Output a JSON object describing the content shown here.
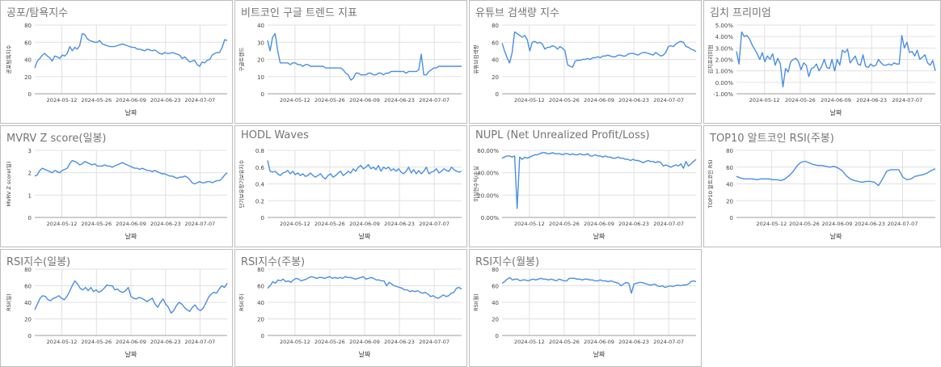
{
  "line_color": "#4a8fe2",
  "grid_color": "#e0e0e0",
  "chart_data": [
    {
      "type": "line",
      "title": "공포/탐욕지수",
      "xlabel": "날짜",
      "ylabel": "공포탐욕지수",
      "ylim": [
        0,
        80
      ],
      "yticks": [
        "0",
        "20",
        "40",
        "60",
        "80"
      ],
      "xticks": [
        "2024-05-12",
        "2024-05-26",
        "2024-06-09",
        "2024-06-23",
        "2024-07-07"
      ],
      "x_start": "2024-05-01",
      "x_end": "2024-07-18",
      "values": [
        30,
        38,
        41,
        45,
        47,
        44,
        42,
        38,
        44,
        43,
        41,
        45,
        44,
        47,
        55,
        50,
        54,
        52,
        56,
        70,
        69,
        64,
        62,
        61,
        60,
        60,
        62,
        58,
        57,
        56,
        55,
        55,
        55,
        56,
        57,
        58,
        57,
        56,
        55,
        54,
        54,
        52,
        52,
        51,
        50,
        52,
        51,
        50,
        51,
        49,
        47,
        46,
        48,
        47,
        47,
        48,
        47,
        46,
        45,
        41,
        43,
        40,
        37,
        38,
        39,
        34,
        32,
        37,
        36,
        39,
        40,
        45,
        47,
        48,
        48,
        54,
        63,
        62
      ]
    },
    {
      "type": "line",
      "title": "비트코인 구글 트렌드 지표",
      "xlabel": "",
      "ylabel": "구글트렌드",
      "ylim": [
        0,
        40
      ],
      "yticks": [
        "0",
        "10",
        "20",
        "30",
        "40"
      ],
      "xticks": [
        "2024-05-12",
        "2024-05-26",
        "2024-06-09",
        "2024-06-23",
        "2024-07-07"
      ],
      "x_start": "2024-05-01",
      "x_end": "2024-07-18",
      "values": [
        31,
        25,
        33,
        35,
        25,
        18,
        18,
        18,
        18,
        17,
        18,
        18,
        17,
        17,
        16,
        17,
        17,
        16,
        16,
        16,
        16,
        16,
        16,
        15,
        15,
        15,
        15,
        15,
        15,
        15,
        14,
        12,
        11,
        8,
        9,
        12,
        12,
        11,
        11,
        11,
        12,
        12,
        11,
        11,
        12,
        12,
        11,
        12,
        12,
        13,
        13,
        13,
        13,
        13,
        13,
        12,
        13,
        13,
        13,
        13,
        14,
        23,
        11,
        11,
        13,
        14,
        15,
        15,
        16,
        16,
        16,
        16,
        16,
        16,
        16,
        16,
        16,
        16
      ]
    },
    {
      "type": "line",
      "title": "유튜브 검색량 지수",
      "xlabel": "",
      "ylabel": "유튜브검색량",
      "ylim": [
        0,
        80
      ],
      "yticks": [
        "0",
        "20",
        "40",
        "60",
        "80"
      ],
      "xticks": [
        "2024-05-12",
        "2024-05-26",
        "2024-06-09",
        "2024-06-23",
        "2024-07-07"
      ],
      "x_start": "2024-05-01",
      "x_end": "2024-07-18",
      "values": [
        59,
        50,
        42,
        36,
        48,
        72,
        70,
        68,
        66,
        68,
        63,
        50,
        60,
        61,
        59,
        60,
        58,
        52,
        54,
        54,
        56,
        55,
        52,
        55,
        53,
        50,
        34,
        32,
        31,
        38,
        39,
        39,
        40,
        40,
        41,
        40,
        42,
        42,
        43,
        42,
        44,
        44,
        45,
        44,
        43,
        43,
        45,
        45,
        44,
        44,
        46,
        47,
        47,
        46,
        45,
        47,
        48,
        48,
        47,
        46,
        45,
        48,
        46,
        44,
        45,
        48,
        55,
        56,
        55,
        58,
        60,
        61,
        60,
        55,
        54,
        52,
        51,
        49
      ]
    },
    {
      "type": "line",
      "title": "김치 프리미엄",
      "xlabel": "날짜",
      "ylabel": "김치프리미엄",
      "ylim": [
        -1,
        5
      ],
      "yticks": [
        "-1.00%",
        "0.00%",
        "1.00%",
        "2.00%",
        "3.00%",
        "4.00%",
        "5.00%"
      ],
      "xticks": [
        "2024-05-12",
        "2024-05-26",
        "2024-06-09",
        "2024-06-23",
        "2024-07-07"
      ],
      "x_start": "2024-05-01",
      "x_end": "2024-07-18",
      "values": [
        2.7,
        1.6,
        4.4,
        4.0,
        4.1,
        3.8,
        3.3,
        2.9,
        2.5,
        2.0,
        2.6,
        1.8,
        2.3,
        2.0,
        2.5,
        1.5,
        2.1,
        1.6,
        -0.4,
        1.2,
        0.9,
        1.8,
        2.0,
        2.1,
        1.8,
        1.1,
        1.7,
        1.5,
        0.5,
        1.2,
        1.3,
        1.6,
        1.0,
        1.4,
        2.0,
        1.3,
        1.2,
        2.0,
        1.0,
        2.0,
        1.5,
        2.8,
        2.6,
        2.9,
        1.7,
        2.0,
        2.3,
        1.6,
        1.5,
        2.4,
        1.4,
        1.3,
        1.6,
        1.4,
        1.5,
        2.0,
        1.7,
        1.5,
        1.5,
        1.6,
        1.5,
        1.7,
        1.6,
        1.6,
        4.1,
        3.0,
        3.5,
        2.6,
        2.7,
        2.3,
        2.8,
        2.0,
        2.2,
        2.4,
        1.7,
        1.5,
        1.9,
        1.0
      ]
    },
    {
      "type": "line",
      "title": "MVRV Z score(일봉)",
      "xlabel": "날짜",
      "ylabel": "MVRV Z score(일)",
      "ylim": [
        0,
        3
      ],
      "yticks": [
        "0",
        "1",
        "2",
        "3"
      ],
      "xticks": [
        "2024-05-12",
        "2024-05-26",
        "2024-06-09",
        "2024-06-23",
        "2024-07-07"
      ],
      "x_start": "2024-05-01",
      "x_end": "2024-07-18",
      "values": [
        1.85,
        1.9,
        2.1,
        2.2,
        2.15,
        2.1,
        2.05,
        2.0,
        2.1,
        2.05,
        2.0,
        2.1,
        2.15,
        2.2,
        2.4,
        2.55,
        2.5,
        2.45,
        2.35,
        2.4,
        2.5,
        2.45,
        2.4,
        2.35,
        2.4,
        2.3,
        2.3,
        2.3,
        2.35,
        2.3,
        2.3,
        2.25,
        2.3,
        2.35,
        2.4,
        2.45,
        2.4,
        2.35,
        2.3,
        2.25,
        2.2,
        2.2,
        2.15,
        2.2,
        2.15,
        2.1,
        2.1,
        2.05,
        2.1,
        2.05,
        2.0,
        1.95,
        1.95,
        1.9,
        1.85,
        1.85,
        1.8,
        1.75,
        1.8,
        1.8,
        1.85,
        1.8,
        1.7,
        1.55,
        1.5,
        1.55,
        1.6,
        1.55,
        1.55,
        1.6,
        1.6,
        1.55,
        1.6,
        1.65,
        1.65,
        1.75,
        1.9,
        2.0
      ]
    },
    {
      "type": "line",
      "title": "HODL Waves",
      "xlabel": "날짜",
      "ylabel": "단기보유장기보유지수",
      "ylim": [
        0,
        0.8
      ],
      "yticks": [
        "0",
        "0.2",
        "0.4",
        "0.6",
        "0.8"
      ],
      "xticks": [
        "2024-05-12",
        "2024-05-26",
        "2024-06-09",
        "2024-06-23",
        "2024-07-07"
      ],
      "x_start": "2024-05-01",
      "x_end": "2024-07-18",
      "values": [
        0.68,
        0.55,
        0.54,
        0.55,
        0.52,
        0.5,
        0.53,
        0.54,
        0.56,
        0.52,
        0.55,
        0.51,
        0.53,
        0.5,
        0.52,
        0.49,
        0.5,
        0.53,
        0.5,
        0.48,
        0.5,
        0.52,
        0.48,
        0.46,
        0.5,
        0.52,
        0.48,
        0.5,
        0.53,
        0.55,
        0.5,
        0.52,
        0.55,
        0.53,
        0.58,
        0.55,
        0.6,
        0.62,
        0.58,
        0.6,
        0.63,
        0.58,
        0.6,
        0.57,
        0.62,
        0.55,
        0.6,
        0.58,
        0.6,
        0.56,
        0.58,
        0.55,
        0.58,
        0.54,
        0.52,
        0.55,
        0.6,
        0.53,
        0.57,
        0.52,
        0.56,
        0.52,
        0.55,
        0.6,
        0.52,
        0.54,
        0.55,
        0.58,
        0.53,
        0.55,
        0.58,
        0.56,
        0.55,
        0.6,
        0.57,
        0.55,
        0.54,
        0.55
      ]
    },
    {
      "type": "line",
      "title": "NUPL (Net Unrealized Profit/Loss)",
      "xlabel": "날짜",
      "ylabel": "미실현수익/손실",
      "ylim": [
        0,
        60
      ],
      "yticks": [
        "0.00%",
        "20.00%",
        "40.00%",
        "60.00%"
      ],
      "xticks": [
        "2024-05-12",
        "2024-05-26",
        "2024-06-09",
        "2024-06-23",
        "2024-07-07"
      ],
      "x_start": "2024-05-01",
      "x_end": "2024-07-18",
      "values": [
        53,
        54,
        55,
        55,
        54,
        55,
        8,
        54,
        52,
        54,
        53,
        54,
        55,
        56,
        56,
        57,
        58,
        58,
        57,
        57,
        58,
        57,
        57,
        57,
        56,
        57,
        57,
        56,
        57,
        56,
        56,
        57,
        56,
        56,
        57,
        55,
        55,
        56,
        55,
        55,
        54,
        55,
        54,
        54,
        53,
        53,
        54,
        53,
        53,
        52,
        52,
        51,
        52,
        51,
        51,
        50,
        49,
        50,
        51,
        50,
        50,
        49,
        50,
        49,
        46,
        47,
        46,
        45,
        46,
        47,
        46,
        48,
        44,
        50,
        46,
        48,
        50,
        52
      ]
    },
    {
      "type": "line",
      "title": "TOP10 알트코인 RSI(주봉)",
      "xlabel": "날짜",
      "ylabel": "TOP10 알트코인 RSI",
      "ylim": [
        0,
        80
      ],
      "yticks": [
        "0",
        "20",
        "40",
        "60",
        "80"
      ],
      "xticks": [
        "2024-05-12",
        "2024-05-26",
        "2024-06-09",
        "2024-06-23",
        "2024-07-07"
      ],
      "x_start": "2024-04-27",
      "x_end": "2024-07-21",
      "values": [
        49,
        47,
        46,
        46,
        46,
        45,
        46,
        46,
        46,
        45,
        45,
        44,
        46,
        50,
        55,
        62,
        66,
        67,
        65,
        63,
        62,
        62,
        61,
        60,
        61,
        59,
        56,
        50,
        46,
        44,
        43,
        42,
        43,
        43,
        42,
        38,
        46,
        55,
        57,
        57,
        57,
        48,
        45,
        46,
        49,
        50,
        51,
        53,
        56,
        58
      ]
    },
    {
      "type": "line",
      "title": "RSI지수(일봉)",
      "xlabel": "날짜",
      "ylabel": "RSI(일)",
      "ylim": [
        0,
        80
      ],
      "yticks": [
        "0",
        "20",
        "40",
        "60",
        "80"
      ],
      "xticks": [
        "2024-05-12",
        "2024-05-26",
        "2024-06-09",
        "2024-06-23",
        "2024-07-07"
      ],
      "x_start": "2024-05-01",
      "x_end": "2024-07-18",
      "values": [
        31,
        38,
        45,
        48,
        47,
        43,
        42,
        45,
        46,
        48,
        45,
        43,
        47,
        53,
        60,
        66,
        62,
        57,
        55,
        58,
        54,
        58,
        53,
        55,
        52,
        54,
        57,
        61,
        60,
        60,
        55,
        56,
        53,
        52,
        54,
        58,
        47,
        45,
        44,
        46,
        45,
        43,
        41,
        43,
        45,
        38,
        34,
        40,
        44,
        38,
        34,
        27,
        30,
        36,
        40,
        38,
        34,
        31,
        29,
        34,
        37,
        32,
        30,
        33,
        39,
        46,
        50,
        52,
        51,
        56,
        60,
        58,
        63
      ]
    },
    {
      "type": "line",
      "title": "RSI지수(주봉)",
      "xlabel": "날짜",
      "ylabel": "RSI(주)",
      "ylim": [
        0,
        80
      ],
      "yticks": [
        "0",
        "20",
        "40",
        "60",
        "80"
      ],
      "xticks": [
        "2024-05-12",
        "2024-05-26",
        "2024-06-09",
        "2024-06-23",
        "2024-07-07"
      ],
      "x_start": "2024-05-01",
      "x_end": "2024-07-18",
      "values": [
        57,
        60,
        65,
        63,
        67,
        66,
        68,
        65,
        66,
        64,
        67,
        69,
        68,
        66,
        67,
        68,
        70,
        71,
        70,
        69,
        70,
        70,
        69,
        70,
        71,
        69,
        70,
        69,
        70,
        69,
        71,
        70,
        70,
        69,
        68,
        69,
        70,
        71,
        68,
        69,
        70,
        69,
        67,
        67,
        66,
        66,
        60,
        64,
        62,
        60,
        59,
        58,
        57,
        55,
        55,
        53,
        54,
        53,
        54,
        52,
        51,
        52,
        50,
        47,
        48,
        46,
        45,
        47,
        49,
        47,
        48,
        51,
        52,
        57,
        58,
        56
      ]
    },
    {
      "type": "line",
      "title": "RSI지수(월봉)",
      "xlabel": "날짜",
      "ylabel": "RSI(월)",
      "ylim": [
        0,
        80
      ],
      "yticks": [
        "0",
        "20",
        "40",
        "60",
        "80"
      ],
      "xticks": [
        "2024-05-12",
        "2024-05-26",
        "2024-06-09",
        "2024-06-23",
        "2024-07-07"
      ],
      "x_start": "2024-05-01",
      "x_end": "2024-07-18",
      "values": [
        63,
        65,
        68,
        70,
        67,
        68,
        68,
        66,
        67,
        67,
        66,
        67,
        68,
        67,
        68,
        69,
        68,
        68,
        67,
        68,
        67,
        66,
        68,
        67,
        66,
        66,
        69,
        69,
        69,
        68,
        68,
        67,
        68,
        68,
        67,
        67,
        66,
        66,
        67,
        66,
        66,
        65,
        66,
        65,
        64,
        63,
        60,
        62,
        64,
        63,
        51,
        62,
        63,
        64,
        64,
        63,
        62,
        61,
        61,
        62,
        60,
        59,
        60,
        58,
        59,
        60,
        59,
        60,
        61,
        60,
        61,
        61,
        62,
        65,
        66,
        65
      ]
    }
  ]
}
